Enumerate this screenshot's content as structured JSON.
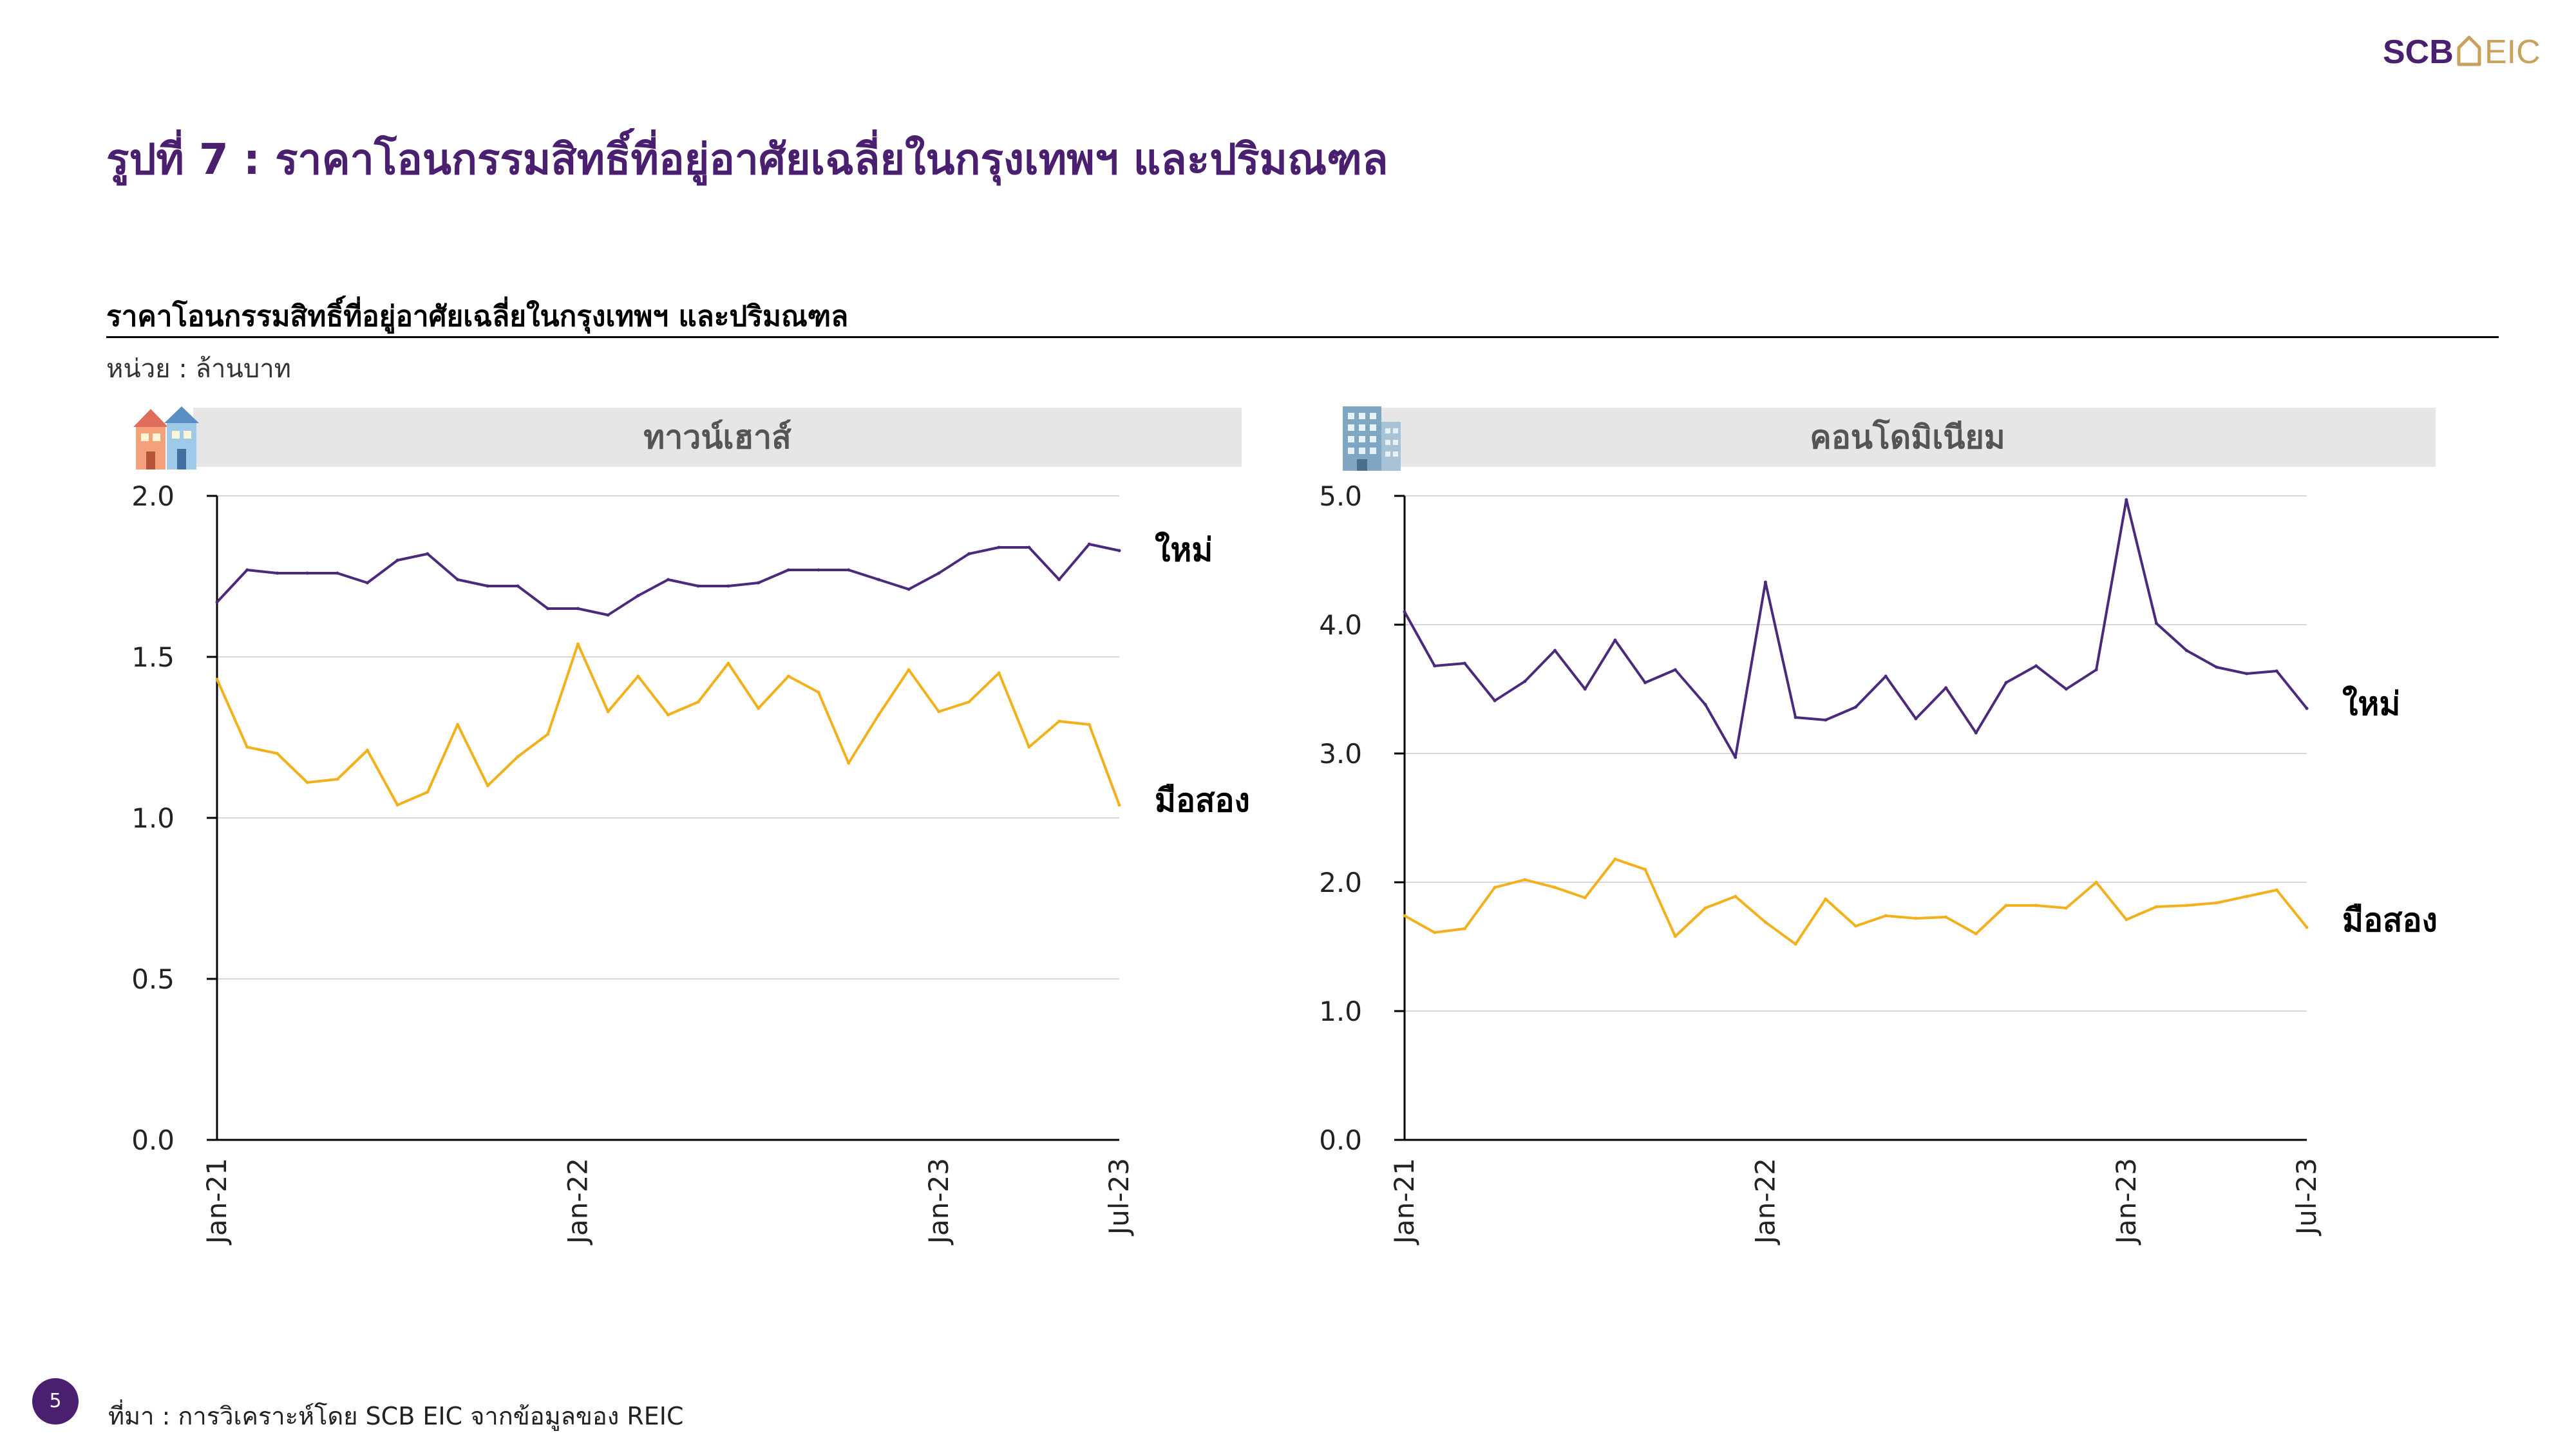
{
  "brand": {
    "logo_text_left": "SCB",
    "logo_text_right": "EIC",
    "purple": "#4b1f6f",
    "gold": "#c9a15c"
  },
  "title": "รูปที่ 7 : ราคาโอนกรรมสิทธิ์ที่อยู่อาศัยเฉลี่ยในกรุงเทพฯ และปริมณฑล",
  "subtitle": "ราคาโอนกรรมสิทธิ์ที่อยู่อาศัยเฉลี่ยในกรุงเทพฯ และปริมณฑล",
  "unit": "หน่วย : ล้านบาท",
  "source": "ที่มา : การวิเคราะห์โดย SCB EIC จากข้อมูลของ REIC",
  "page_number": "5",
  "colors": {
    "new": "#4b2a7b",
    "used": "#f2b01c",
    "grid": "#d9d3ea",
    "axis": "#000000"
  },
  "chart_data": [
    {
      "type": "line",
      "panel_title": "ทาวน์เฮาส์",
      "icon": "townhouse-icon",
      "ylim": [
        0,
        2.0
      ],
      "yticks": [
        "0.0",
        "0.5",
        "1.0",
        "1.5",
        "2.0"
      ],
      "ytick_values": [
        0,
        0.5,
        1.0,
        1.5,
        2.0
      ],
      "xtick_labels": [
        "Jan-21",
        "Jan-22",
        "Jan-23",
        "Jul-23"
      ],
      "xtick_index": [
        0,
        12,
        24,
        30
      ],
      "x_start": "Jan-21",
      "x_end": "Jul-23",
      "grid": true,
      "series": [
        {
          "name": "ใหม่",
          "key": "new",
          "values": [
            1.67,
            1.77,
            1.76,
            1.76,
            1.76,
            1.73,
            1.8,
            1.82,
            1.74,
            1.72,
            1.72,
            1.65,
            1.65,
            1.63,
            1.69,
            1.74,
            1.72,
            1.72,
            1.73,
            1.77,
            1.77,
            1.77,
            1.74,
            1.71,
            1.76,
            1.82,
            1.84,
            1.84,
            1.74,
            1.85,
            1.83
          ]
        },
        {
          "name": "มือสอง",
          "key": "used",
          "values": [
            1.43,
            1.22,
            1.2,
            1.11,
            1.12,
            1.21,
            1.04,
            1.08,
            1.29,
            1.1,
            1.19,
            1.26,
            1.54,
            1.33,
            1.44,
            1.32,
            1.36,
            1.48,
            1.34,
            1.44,
            1.39,
            1.17,
            1.32,
            1.46,
            1.33,
            1.36,
            1.45,
            1.22,
            1.3,
            1.29,
            1.04
          ]
        }
      ]
    },
    {
      "type": "line",
      "panel_title": "คอนโดมิเนียม",
      "icon": "condominium-icon",
      "ylim": [
        0,
        5.0
      ],
      "yticks": [
        "0.0",
        "1.0",
        "2.0",
        "3.0",
        "4.0",
        "5.0"
      ],
      "ytick_values": [
        0,
        1.0,
        2.0,
        3.0,
        4.0,
        5.0
      ],
      "xtick_labels": [
        "Jan-21",
        "Jan-22",
        "Jan-23",
        "Jul-23"
      ],
      "xtick_index": [
        0,
        12,
        24,
        30
      ],
      "x_start": "Jan-21",
      "x_end": "Jul-23",
      "grid": true,
      "series": [
        {
          "name": "ใหม่",
          "key": "new",
          "values": [
            4.1,
            3.68,
            3.7,
            3.41,
            3.56,
            3.8,
            3.5,
            3.88,
            3.55,
            3.65,
            3.38,
            2.97,
            4.33,
            3.28,
            3.26,
            3.36,
            3.6,
            3.27,
            3.51,
            3.16,
            3.55,
            3.68,
            3.5,
            3.65,
            4.97,
            4.01,
            3.8,
            3.67,
            3.62,
            3.64,
            3.35
          ]
        },
        {
          "name": "มือสอง",
          "key": "used",
          "values": [
            1.74,
            1.61,
            1.64,
            1.96,
            2.02,
            1.96,
            1.88,
            2.18,
            2.1,
            1.58,
            1.8,
            1.89,
            1.69,
            1.52,
            1.87,
            1.66,
            1.74,
            1.72,
            1.73,
            1.6,
            1.82,
            1.82,
            1.8,
            2.0,
            1.71,
            1.81,
            1.82,
            1.84,
            1.89,
            1.94,
            1.65
          ]
        }
      ]
    }
  ]
}
